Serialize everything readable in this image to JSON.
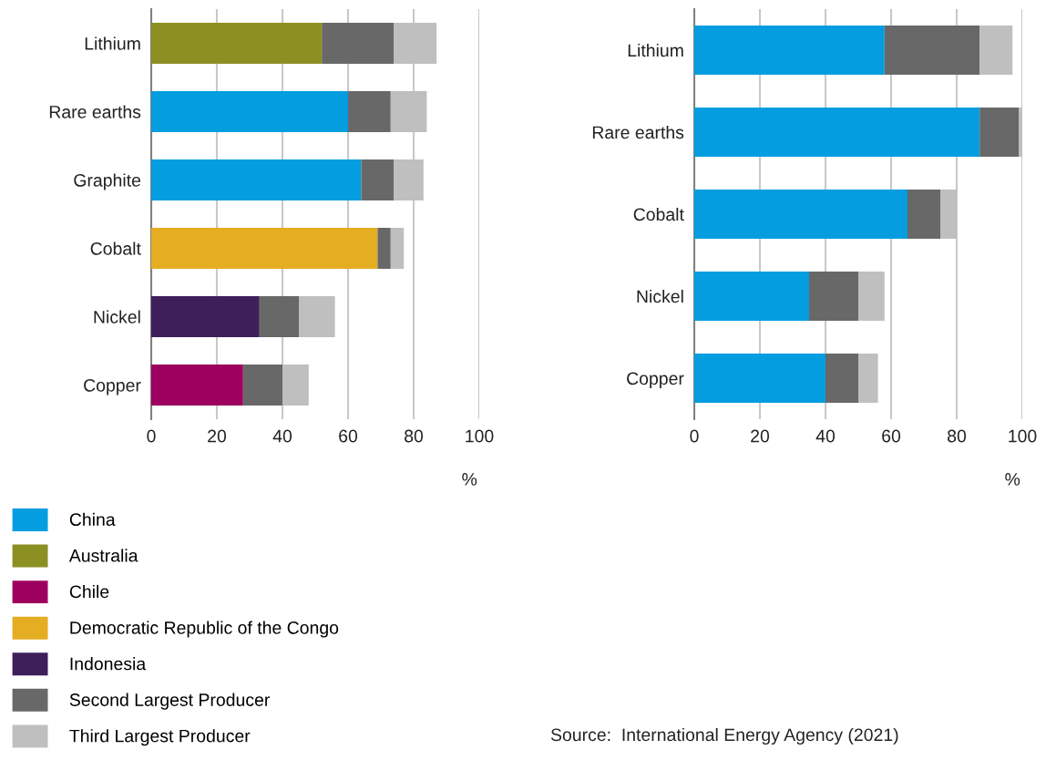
{
  "chart_data": [
    {
      "type": "bar",
      "orientation": "horizontal",
      "stacked": true,
      "categories": [
        "Lithium",
        "Rare earths",
        "Graphite",
        "Cobalt",
        "Nickel",
        "Copper"
      ],
      "series": [
        {
          "name": "China",
          "color": "#039de0",
          "values": [
            null,
            60,
            64,
            null,
            null,
            null
          ]
        },
        {
          "name": "Australia",
          "color": "#8c9023",
          "values": [
            52,
            null,
            null,
            null,
            null,
            null
          ]
        },
        {
          "name": "Chile",
          "color": "#9e0060",
          "values": [
            null,
            null,
            null,
            null,
            null,
            28
          ]
        },
        {
          "name": "Democratic Republic of the Congo",
          "color": "#e5ad22",
          "values": [
            null,
            null,
            null,
            69,
            null,
            null
          ]
        },
        {
          "name": "Indonesia",
          "color": "#3e1f5a",
          "values": [
            null,
            null,
            null,
            null,
            33,
            null
          ]
        },
        {
          "name": "Second Largest Producer",
          "color": "#686868",
          "values": [
            22,
            13,
            10,
            4,
            12,
            12
          ]
        },
        {
          "name": "Third Largest Producer",
          "color": "#bfbfbf",
          "values": [
            13,
            11,
            9,
            4,
            11,
            8
          ]
        }
      ],
      "xlim": [
        0,
        100
      ],
      "xticks": [
        0,
        20,
        40,
        60,
        80,
        100
      ],
      "xlabel": "%",
      "grid": "x",
      "legend": "bottom"
    },
    {
      "type": "bar",
      "orientation": "horizontal",
      "stacked": true,
      "categories": [
        "Lithium",
        "Rare earths",
        "Cobalt",
        "Nickel",
        "Copper"
      ],
      "series": [
        {
          "color": "#039de0",
          "values": [
            58,
            87,
            65,
            35,
            40
          ]
        },
        {
          "color": "#686868",
          "values": [
            29,
            12,
            10,
            15,
            10
          ]
        },
        {
          "color": "#bfbfbf",
          "values": [
            10,
            1,
            5,
            8,
            6
          ]
        }
      ],
      "xlim": [
        0,
        100
      ],
      "xticks": [
        0,
        20,
        40,
        60,
        80,
        100
      ],
      "xlabel": "%",
      "grid": "x",
      "annotations": [
        "Source:  International Energy Agency (2021)"
      ]
    }
  ]
}
